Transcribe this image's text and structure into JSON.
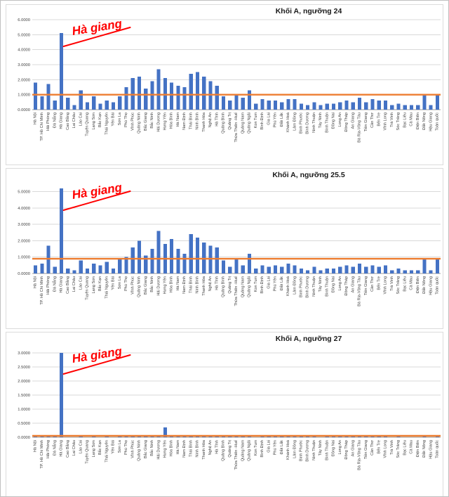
{
  "page": {
    "name": "Excel charts - admission score thresholds by province"
  },
  "colors": {
    "bar": "#4472C4",
    "threshold_line": "#ED7D31",
    "grid": "#D9D9D9",
    "axis": "#9A9A9A",
    "tick_text": "#404040",
    "title_text": "#1a1a1a",
    "annotation": "#FF0000"
  },
  "chart_data": [
    {
      "type": "bar",
      "title": "Khối A, ngưỡng 24",
      "legend": "none",
      "grid": true,
      "ylim": [
        0,
        6
      ],
      "yticks": [
        0,
        1,
        2,
        3,
        4,
        5,
        6
      ],
      "tick_decimals": 4,
      "threshold": 1.0,
      "annotation": {
        "text": "Hà giang",
        "target_category": "Hà Giang"
      },
      "categories": [
        "Hà Nội",
        "TP. Hồ Chí Minh",
        "Hải Phòng",
        "Đà Nẵng",
        "Hà Giang",
        "Cao Bằng",
        "Lai Châu",
        "Lào Cai",
        "Tuyên Quang",
        "Lạng Sơn",
        "Bắc Kạn",
        "Thái Nguyên",
        "Yên Bái",
        "Sơn La",
        "Phú Thọ",
        "Vĩnh Phúc",
        "Quảng Ninh",
        "Bắc Giang",
        "Bắc Ninh",
        "Hải Dương",
        "Hưng Yên",
        "Hòa Bình",
        "Hà Nam",
        "Nam Định",
        "Thái Bình",
        "Ninh Bình",
        "Thanh Hóa",
        "Nghệ An",
        "Hà Tĩnh",
        "Quảng Bình",
        "Quảng Trị",
        "Thừa Thiên -Huế",
        "Quảng Nam",
        "Quảng Ngãi",
        "Kon Tum",
        "Bình Định",
        "Gia Lai",
        "Phú Yên",
        "Đắk Lắk",
        "Khánh Hoà",
        "Lâm Đồng",
        "Bình Phước",
        "Bình Dương",
        "Ninh Thuận",
        "Tây Ninh",
        "Bình Thuận",
        "Đồng Nai",
        "Long An",
        "Đồng Tháp",
        "An Giang",
        "Bà Rịa-Vũng Tàu",
        "Tiền Giang",
        "Cần Thơ",
        "Bến Tre",
        "Vĩnh Long",
        "Trà Vinh",
        "Sóc Trăng",
        "Bạc Liêu",
        "Cà Mau",
        "Điện Biên",
        "Đắk Nông",
        "Hậu Giang",
        "Toàn quốc"
      ],
      "values": [
        1.8,
        0.9,
        1.7,
        0.6,
        5.1,
        0.8,
        0.3,
        1.3,
        0.5,
        0.9,
        0.4,
        0.6,
        0.5,
        0.9,
        1.5,
        2.1,
        2.2,
        1.4,
        1.9,
        2.7,
        2.1,
        1.8,
        1.6,
        1.5,
        2.4,
        2.5,
        2.2,
        1.9,
        1.6,
        0.9,
        0.6,
        1.0,
        0.8,
        1.3,
        0.4,
        0.7,
        0.6,
        0.6,
        0.5,
        0.7,
        0.7,
        0.4,
        0.3,
        0.5,
        0.3,
        0.4,
        0.4,
        0.5,
        0.6,
        0.5,
        0.8,
        0.5,
        0.7,
        0.6,
        0.6,
        0.3,
        0.4,
        0.3,
        0.3,
        0.3,
        1.0,
        0.3,
        1.0
      ]
    },
    {
      "type": "bar",
      "title": "Khối A, ngưỡng 25.5",
      "legend": "none",
      "grid": true,
      "ylim": [
        0,
        5.5
      ],
      "yticks": [
        0,
        1,
        2,
        3,
        4,
        5
      ],
      "tick_decimals": 4,
      "threshold": 0.9,
      "annotation": {
        "text": "Hà giang",
        "target_category": "Hà Giang"
      },
      "categories": [
        "Hà Nội",
        "TP. Hồ Chí Minh",
        "Hải Phòng",
        "Đà Nẵng",
        "Hà Giang",
        "Cao Bằng",
        "Lai Châu",
        "Lào Cai",
        "Tuyên Quang",
        "Lạng Sơn",
        "Bắc Kạn",
        "Thái Nguyên",
        "Yên Bái",
        "Sơn La",
        "Phú Thọ",
        "Vĩnh Phúc",
        "Quảng Ninh",
        "Bắc Giang",
        "Bắc Ninh",
        "Hải Dương",
        "Hưng Yên",
        "Hòa Bình",
        "Hà Nam",
        "Nam Định",
        "Thái Bình",
        "Ninh Bình",
        "Thanh Hóa",
        "Nghệ An",
        "Hà Tĩnh",
        "Quảng Bình",
        "Quảng Trị",
        "Thừa Thiên -Huế",
        "Quảng Nam",
        "Quảng Ngãi",
        "Kon Tum",
        "Bình Định",
        "Gia Lai",
        "Phú Yên",
        "Đắk Lắk",
        "Khánh Hoà",
        "Lâm Đồng",
        "Bình Phước",
        "Bình Dương",
        "Ninh Thuận",
        "Tây Ninh",
        "Bình Thuận",
        "Đồng Nai",
        "Long An",
        "Đồng Tháp",
        "An Giang",
        "Bà Rịa-Vũng Tàu",
        "Tiền Giang",
        "Cần Thơ",
        "Bến Tre",
        "Vĩnh Long",
        "Trà Vinh",
        "Sóc Trăng",
        "Bạc Liêu",
        "Cà Mau",
        "Điện Biên",
        "Đắk Nông",
        "Hậu Giang",
        "Toàn quốc"
      ],
      "values": [
        0.5,
        0.6,
        1.7,
        0.4,
        5.2,
        0.3,
        0.2,
        0.8,
        0.3,
        0.6,
        0.5,
        0.7,
        0.3,
        0.9,
        1.0,
        1.6,
        2.0,
        1.1,
        1.5,
        2.6,
        1.8,
        2.1,
        1.5,
        1.2,
        2.4,
        2.2,
        1.9,
        1.7,
        1.6,
        0.8,
        0.4,
        0.9,
        0.5,
        1.2,
        0.3,
        0.5,
        0.4,
        0.5,
        0.4,
        0.6,
        0.5,
        0.3,
        0.2,
        0.4,
        0.2,
        0.3,
        0.3,
        0.4,
        0.5,
        0.4,
        0.6,
        0.4,
        0.5,
        0.4,
        0.5,
        0.2,
        0.3,
        0.2,
        0.2,
        0.2,
        0.9,
        0.2,
        0.9
      ]
    },
    {
      "type": "bar",
      "title": "Khối A, ngưỡng 27",
      "legend": "none",
      "grid": true,
      "ylim": [
        0,
        3.2
      ],
      "yticks": [
        0,
        0.5,
        1,
        1.5,
        2,
        2.5,
        3
      ],
      "tick_decimals": 4,
      "threshold": 0.05,
      "annotation": {
        "text": "Hà giang",
        "target_category": "Hà Giang"
      },
      "categories": [
        "Hà Nội",
        "TP. Hồ Chí Minh",
        "Hải Phòng",
        "Đà Nẵng",
        "Hà Giang",
        "Cao Bằng",
        "Lai Châu",
        "Lào Cai",
        "Tuyên Quang",
        "Lạng Sơn",
        "Bắc Kạn",
        "Thái Nguyên",
        "Yên Bái",
        "Sơn La",
        "Phú Thọ",
        "Vĩnh Phúc",
        "Quảng Ninh",
        "Bắc Giang",
        "Bắc Ninh",
        "Hải Dương",
        "Hưng Yên",
        "Hòa Bình",
        "Hà Nam",
        "Nam Định",
        "Thái Bình",
        "Ninh Bình",
        "Thanh Hóa",
        "Nghệ An",
        "Hà Tĩnh",
        "Quảng Bình",
        "Quảng Trị",
        "Thừa Thiên -Huế",
        "Quảng Nam",
        "Quảng Ngãi",
        "Kon Tum",
        "Bình Định",
        "Gia Lai",
        "Phú Yên",
        "Đắk Lắk",
        "Khánh Hoà",
        "Lâm Đồng",
        "Bình Phước",
        "Bình Dương",
        "Ninh Thuận",
        "Tây Ninh",
        "Bình Thuận",
        "Đồng Nai",
        "Long An",
        "Đồng Tháp",
        "An Giang",
        "Bà Rịa-Vũng Tàu",
        "Tiền Giang",
        "Cần Thơ",
        "Bến Tre",
        "Vĩnh Long",
        "Trà Vinh",
        "Sóc Trăng",
        "Bạc Liêu",
        "Cà Mau",
        "Điện Biên",
        "Đắk Nông",
        "Hậu Giang",
        "Toàn quốc"
      ],
      "values": [
        0.02,
        0.03,
        0.05,
        0.02,
        3.0,
        0.0,
        0.0,
        0.02,
        0.0,
        0.02,
        0.0,
        0.02,
        0.0,
        0.02,
        0.03,
        0.05,
        0.05,
        0.03,
        0.05,
        0.08,
        0.35,
        0.05,
        0.03,
        0.03,
        0.06,
        0.05,
        0.05,
        0.04,
        0.03,
        0.02,
        0.01,
        0.02,
        0.02,
        0.03,
        0.0,
        0.01,
        0.01,
        0.01,
        0.01,
        0.02,
        0.02,
        0.01,
        0.01,
        0.01,
        0.0,
        0.01,
        0.01,
        0.01,
        0.01,
        0.01,
        0.02,
        0.01,
        0.02,
        0.01,
        0.01,
        0.0,
        0.01,
        0.0,
        0.0,
        0.0,
        0.03,
        0.0,
        0.05
      ]
    }
  ]
}
